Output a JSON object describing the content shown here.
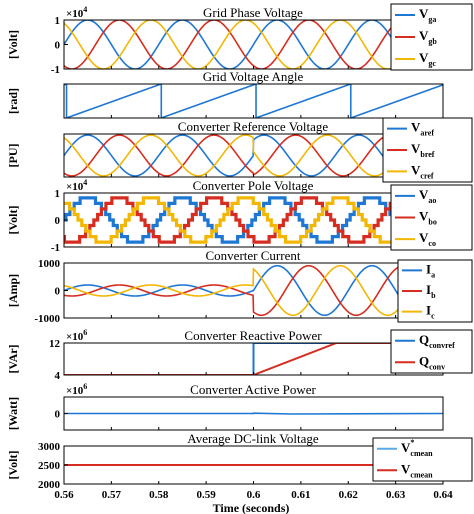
{
  "figure": {
    "xlabel": "Time (seconds)",
    "x_ticks": [
      "0.56",
      "0.57",
      "0.58",
      "0.59",
      "0.6",
      "0.61",
      "0.62",
      "0.63",
      "0.64"
    ]
  },
  "colors": {
    "blue": "#1f77d4",
    "red": "#d62d20",
    "yellow": "#f2b705"
  },
  "chart_data": [
    {
      "type": "line",
      "title": "Grid Phase Voltage",
      "ylabel": "[Volt]",
      "exponent": "×10",
      "exponent_power": "4",
      "xlim": [
        0.56,
        0.64
      ],
      "ylim": [
        -1,
        1
      ],
      "y_ticks": [
        "1",
        "0",
        "-1"
      ],
      "y_tick_values": [
        1,
        0,
        -1
      ],
      "signal": {
        "kind": "three_phase_sine",
        "frequency_hz": 50,
        "amplitude": 1
      },
      "series": [
        {
          "main": "V",
          "sub": "ga",
          "color": "#1f77d4",
          "phase_deg": 0
        },
        {
          "main": "V",
          "sub": "gb",
          "color": "#d62d20",
          "phase_deg": -120
        },
        {
          "main": "V",
          "sub": "gc",
          "color": "#f2b705",
          "phase_deg": 120
        }
      ]
    },
    {
      "type": "line",
      "title": "Grid Voltage Angle",
      "ylabel": "[rad]",
      "xlim": [
        0.56,
        0.64
      ],
      "ylim": [
        0,
        6.28
      ],
      "y_ticks": [],
      "signal": {
        "kind": "sawtooth",
        "frequency_hz": 50,
        "amplitude": 6.28
      },
      "series": [
        {
          "main": "",
          "sub": "",
          "color": "#1f77d4"
        }
      ]
    },
    {
      "type": "line",
      "title": "Converter Reference Voltage",
      "ylabel": "[PU]",
      "xlim": [
        0.56,
        0.64
      ],
      "ylim": [
        -1,
        1
      ],
      "y_ticks": [],
      "signal": {
        "kind": "three_phase_sine",
        "frequency_hz": 50,
        "amplitude": 0.95,
        "phase_shift_at": 0.6,
        "shift_deg": 50
      },
      "series": [
        {
          "main": "V",
          "sub": "aref",
          "color": "#1f77d4",
          "phase_deg": 0
        },
        {
          "main": "V",
          "sub": "bref",
          "color": "#d62d20",
          "phase_deg": -120
        },
        {
          "main": "V",
          "sub": "cref",
          "color": "#f2b705",
          "phase_deg": 120
        }
      ]
    },
    {
      "type": "line",
      "title": "Converter Pole Voltage",
      "ylabel": "[Volt]",
      "exponent": "×10",
      "exponent_power": "4",
      "xlim": [
        0.56,
        0.64
      ],
      "ylim": [
        -1,
        1
      ],
      "y_ticks": [
        "1",
        "0",
        "-1"
      ],
      "y_tick_values": [
        1,
        0,
        -1
      ],
      "signal": {
        "kind": "multilevel_staircase",
        "frequency_hz": 50,
        "amplitude": 0.82,
        "levels": 4
      },
      "series": [
        {
          "main": "V",
          "sub": "ao",
          "color": "#1f77d4",
          "phase_deg": 0
        },
        {
          "main": "V",
          "sub": "bo",
          "color": "#d62d20",
          "phase_deg": -120
        },
        {
          "main": "V",
          "sub": "co",
          "color": "#f2b705",
          "phase_deg": 120
        }
      ]
    },
    {
      "type": "line",
      "title": "Converter Current",
      "ylabel": "[Amp]",
      "xlim": [
        0.56,
        0.64
      ],
      "ylim": [
        -1000,
        1000
      ],
      "y_ticks": [
        "1000",
        "0",
        "-1000"
      ],
      "y_tick_values": [
        1000,
        0,
        -1000
      ],
      "signal": {
        "kind": "three_phase_sine",
        "frequency_hz": 50,
        "amplitude": 200,
        "step_at": 0.6,
        "amplitude_after": 900
      },
      "series": [
        {
          "main": "I",
          "sub": "a",
          "color": "#1f77d4",
          "phase_deg": 0
        },
        {
          "main": "I",
          "sub": "b",
          "color": "#d62d20",
          "phase_deg": -120
        },
        {
          "main": "I",
          "sub": "c",
          "color": "#f2b705",
          "phase_deg": 120
        }
      ]
    },
    {
      "type": "line",
      "title": "Converter Reactive Power",
      "ylabel": "[VAr]",
      "exponent": "×10",
      "exponent_power": "6",
      "xlim": [
        0.56,
        0.64
      ],
      "ylim": [
        4,
        12
      ],
      "y_ticks": [
        "12",
        "4"
      ],
      "y_tick_values": [
        12,
        4
      ],
      "series": [
        {
          "main": "Q",
          "sub": "convref",
          "color": "#1f77d4",
          "points": [
            [
              0.56,
              4
            ],
            [
              0.6,
              4
            ],
            [
              0.6,
              12
            ],
            [
              0.64,
              12
            ]
          ]
        },
        {
          "main": "Q",
          "sub": "conv",
          "color": "#d62d20",
          "points": [
            [
              0.56,
              4
            ],
            [
              0.6,
              4
            ],
            [
              0.6175,
              12
            ],
            [
              0.64,
              12
            ]
          ]
        }
      ]
    },
    {
      "type": "line",
      "title": "Converter Active Power",
      "ylabel": "[Watt]",
      "exponent": "×10",
      "exponent_power": "6",
      "xlim": [
        0.56,
        0.64
      ],
      "ylim": [
        -1,
        1
      ],
      "y_ticks": [
        "0"
      ],
      "y_tick_values": [
        0
      ],
      "series": [
        {
          "main": "",
          "sub": "",
          "color": "#1f77d4",
          "points": [
            [
              0.56,
              0
            ],
            [
              0.6,
              0
            ],
            [
              0.6,
              0.02
            ],
            [
              0.608,
              -0.03
            ],
            [
              0.64,
              0
            ]
          ]
        }
      ]
    },
    {
      "type": "line",
      "title": "Average DC-link Voltage",
      "ylabel": "[Volt]",
      "xlim": [
        0.56,
        0.64
      ],
      "ylim": [
        2000,
        3000
      ],
      "y_ticks": [
        "3000",
        "2500",
        "2000"
      ],
      "y_tick_values": [
        3000,
        2500,
        2000
      ],
      "series": [
        {
          "main": "V",
          "sub": "cmean",
          "sup": "*",
          "color": "#5aa9e6",
          "points": [
            [
              0.56,
              2500
            ],
            [
              0.64,
              2500
            ]
          ]
        },
        {
          "main": "V",
          "sub": "cmean",
          "color": "#d62d20",
          "points": [
            [
              0.56,
              2500
            ],
            [
              0.64,
              2500
            ]
          ]
        }
      ]
    }
  ]
}
